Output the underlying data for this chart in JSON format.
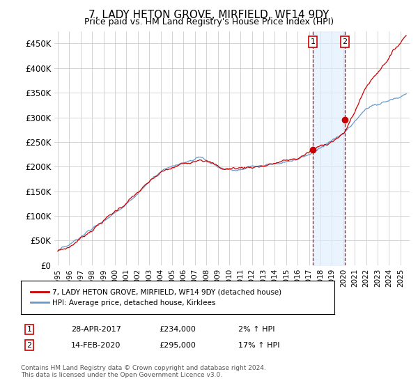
{
  "title": "7, LADY HETON GROVE, MIRFIELD, WF14 9DY",
  "subtitle": "Price paid vs. HM Land Registry's House Price Index (HPI)",
  "ylim": [
    0,
    475000
  ],
  "yticks": [
    0,
    50000,
    100000,
    150000,
    200000,
    250000,
    300000,
    350000,
    400000,
    450000
  ],
  "ytick_labels": [
    "£0",
    "£50K",
    "£100K",
    "£150K",
    "£200K",
    "£250K",
    "£300K",
    "£350K",
    "£400K",
    "£450K"
  ],
  "background_color": "#ffffff",
  "grid_color": "#cccccc",
  "legend_label_red": "7, LADY HETON GROVE, MIRFIELD, WF14 9DY (detached house)",
  "legend_label_blue": "HPI: Average price, detached house, Kirklees",
  "annotation1_date": "28-APR-2017",
  "annotation1_price": "£234,000",
  "annotation1_hpi": "2% ↑ HPI",
  "annotation2_date": "14-FEB-2020",
  "annotation2_price": "£295,000",
  "annotation2_hpi": "17% ↑ HPI",
  "footer": "Contains HM Land Registry data © Crown copyright and database right 2024.\nThis data is licensed under the Open Government Licence v3.0.",
  "red_color": "#cc0000",
  "blue_color": "#6699cc",
  "shade_color": "#ddeeff",
  "vline_color": "#cc0000",
  "box_color": "#cc0000",
  "sale1_year": 2017.33,
  "sale1_price": 234000,
  "sale2_year": 2020.12,
  "sale2_price": 295000
}
